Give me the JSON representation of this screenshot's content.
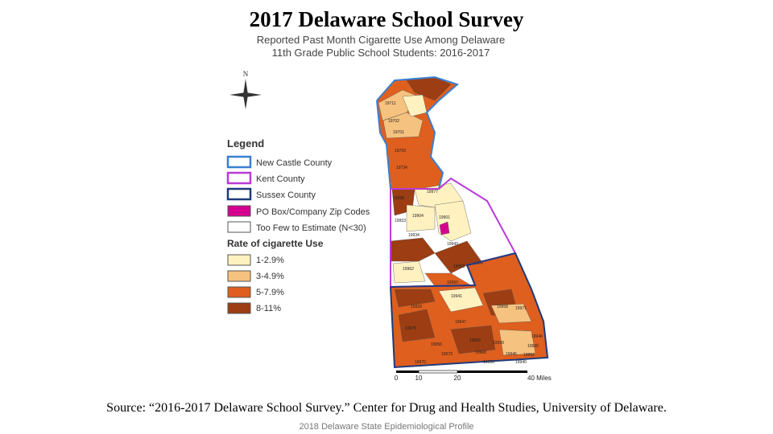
{
  "header": {
    "title": "2017 Delaware School Survey"
  },
  "map": {
    "title": [
      "Reported Past Month Cigarette Use Among Delaware",
      "11th Grade Public School Students: 2016-2017"
    ],
    "north": "N",
    "zip_labels": [
      "19711",
      "19702",
      "19701",
      "19709",
      "19734",
      "19977",
      "19938",
      "19953",
      "19904",
      "19901",
      "19934",
      "19943",
      "19962",
      "19963",
      "19960",
      "19941",
      "19933",
      "19947",
      "19958",
      "19971",
      "19975",
      "19956",
      "19966",
      "19939",
      "19930",
      "19945",
      "19970",
      "19940",
      "19950",
      "19952",
      "19946",
      "19968",
      "19973"
    ],
    "scale": [
      "0",
      "10",
      "20",
      "40 Miles"
    ]
  },
  "legend": {
    "title": "Legend",
    "items": [
      "New Castle County",
      "Kent County",
      "Sussex County",
      "PO Box/Company Zip Codes",
      "Too Few to Estimate (N<30)"
    ],
    "rate_title": "Rate of cigarette Use",
    "rate_items": [
      "1-2.9%",
      "3-4.9%",
      "5-7.9%",
      "8-11%"
    ]
  },
  "source": "Source: “2016-2017 Delaware School Survey.” Center for Drug and Health Studies, University of Delaware.",
  "footer": "2018 Delaware State Epidemiological Profile"
}
